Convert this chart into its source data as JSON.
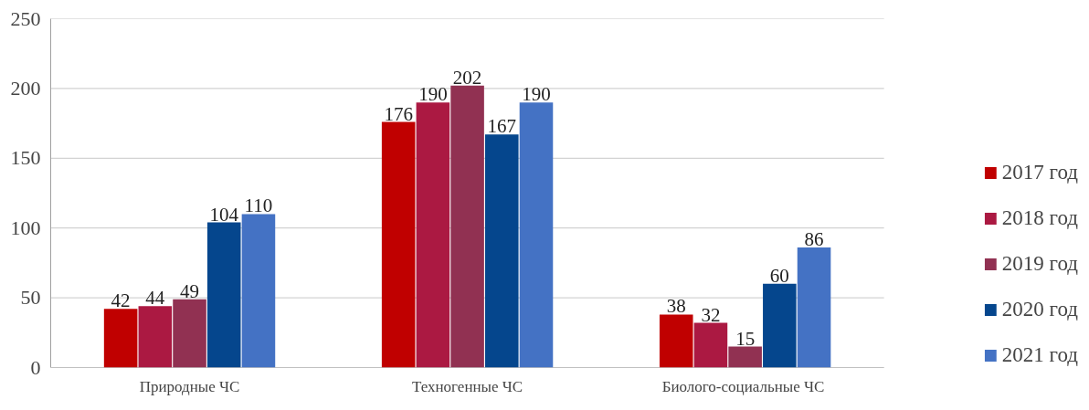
{
  "chart_data": {
    "type": "bar",
    "categories": [
      "Природные ЧС",
      "Техногенные ЧС",
      "Биолого-социальные  ЧС"
    ],
    "series": [
      {
        "name": "2017 год",
        "color": "#c00000",
        "values": [
          42,
          176,
          38
        ]
      },
      {
        "name": "2018 год",
        "color": "#ab1942",
        "values": [
          44,
          190,
          32
        ]
      },
      {
        "name": "2019 год",
        "color": "#913152",
        "values": [
          49,
          202,
          15
        ]
      },
      {
        "name": "2020 год",
        "color": "#05468d",
        "values": [
          104,
          167,
          60
        ]
      },
      {
        "name": "2021 год",
        "color": "#4472c4",
        "values": [
          110,
          190,
          86
        ]
      }
    ],
    "ylim": [
      0,
      250
    ],
    "yticks": [
      0,
      50,
      100,
      150,
      200,
      250
    ],
    "grid": "y",
    "legend": "right",
    "data_labels": true
  }
}
